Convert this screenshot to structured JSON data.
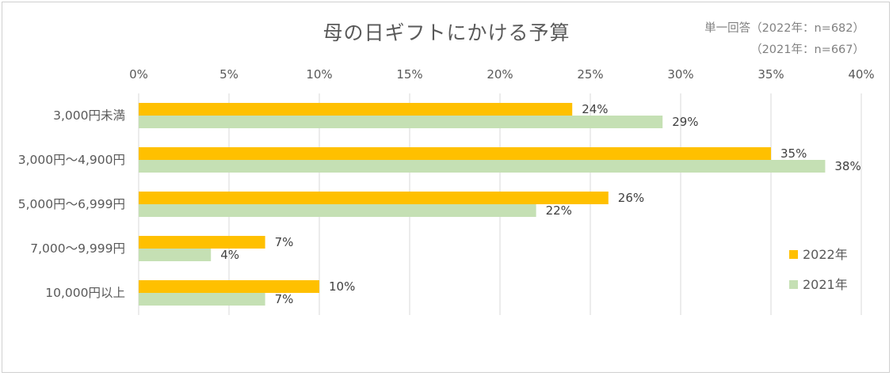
{
  "chart_data": {
    "type": "bar",
    "orientation": "horizontal",
    "title": "母の日ギフトにかける予算",
    "notes": [
      "単一回答（2022年：n=682）",
      "（2021年：n=667）"
    ],
    "categories": [
      "3,000円未満",
      "3,000円～4,900円",
      "5,000円～6,999円",
      "7,000～9,999円",
      "10,000円以上"
    ],
    "series": [
      {
        "name": "2022年",
        "values": [
          24,
          35,
          26,
          7,
          10
        ],
        "labels": [
          "24%",
          "35%",
          "26%",
          "7%",
          "10%"
        ],
        "color": "#FFC000"
      },
      {
        "name": "2021年",
        "values": [
          29,
          38,
          22,
          4,
          7
        ],
        "labels": [
          "29%",
          "38%",
          "22%",
          "4%",
          "7%"
        ],
        "color": "#C5E0B4"
      }
    ],
    "xlim": [
      0,
      40
    ],
    "xticks": [
      "0%",
      "5%",
      "10%",
      "15%",
      "20%",
      "25%",
      "30%",
      "35%",
      "40%"
    ],
    "grid": "vertical",
    "legend_position": "right"
  }
}
